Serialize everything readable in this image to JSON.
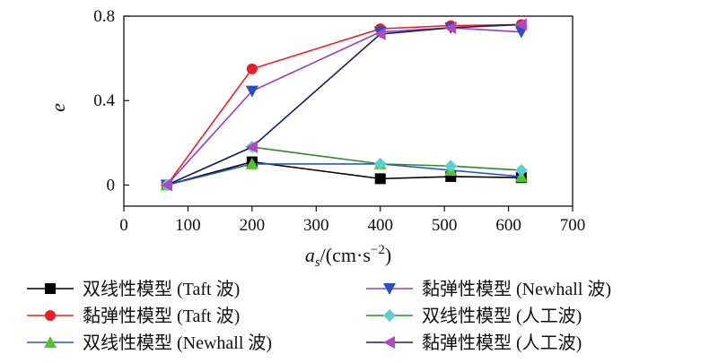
{
  "chart_data": {
    "type": "line",
    "title": "",
    "ylabel": "e",
    "xlabel": {
      "var": "a",
      "sub": "s",
      "unit": "/(cm·s",
      "exp": "−2",
      "close": ")"
    },
    "xlim": [
      0,
      700
    ],
    "ylim": [
      -0.1,
      0.8
    ],
    "xticks": [
      "0",
      "100",
      "200",
      "300",
      "400",
      "500",
      "600",
      "700"
    ],
    "yticks": [
      "0",
      "0.4",
      "0.8"
    ],
    "grid": false,
    "legend_position": "bottom",
    "x": [
      67,
      200,
      400,
      510,
      620
    ],
    "series": [
      {
        "name": "双线性模型 (Taft 波)",
        "values": [
          0.0,
          0.11,
          0.03,
          0.04,
          0.035
        ],
        "color": "#000000",
        "marker": "square",
        "marker_color": "#000000"
      },
      {
        "name": "黏弹性模型 (Taft 波)",
        "values": [
          0.0,
          0.55,
          0.74,
          0.755,
          0.76
        ],
        "color": "#e8202a",
        "marker": "circle",
        "marker_color": "#e8202a"
      },
      {
        "name": "双线性模型 (Newhall 波)",
        "values": [
          0.0,
          0.1,
          0.1,
          0.07,
          0.04
        ],
        "color": "#2a55c4",
        "marker": "triangle-up",
        "marker_color": "#55c42a"
      },
      {
        "name": "黏弹性模型 (Newhall 波)",
        "values": [
          0.0,
          0.445,
          0.725,
          0.745,
          0.725
        ],
        "color": "#9b3cc4",
        "marker": "triangle-down",
        "marker_color": "#2a4fc4"
      },
      {
        "name": "双线性模型 (人工波)",
        "values": [
          0.0,
          0.18,
          0.1,
          0.09,
          0.07
        ],
        "color": "#2a8a2a",
        "marker": "diamond",
        "marker_color": "#5ccfcf"
      },
      {
        "name": "黏弹性模型 (人工波)",
        "values": [
          0.0,
          0.18,
          0.715,
          0.745,
          0.76
        ],
        "color": "#1a1f5a",
        "marker": "triangle-left",
        "marker_color": "#b048c4"
      }
    ]
  }
}
